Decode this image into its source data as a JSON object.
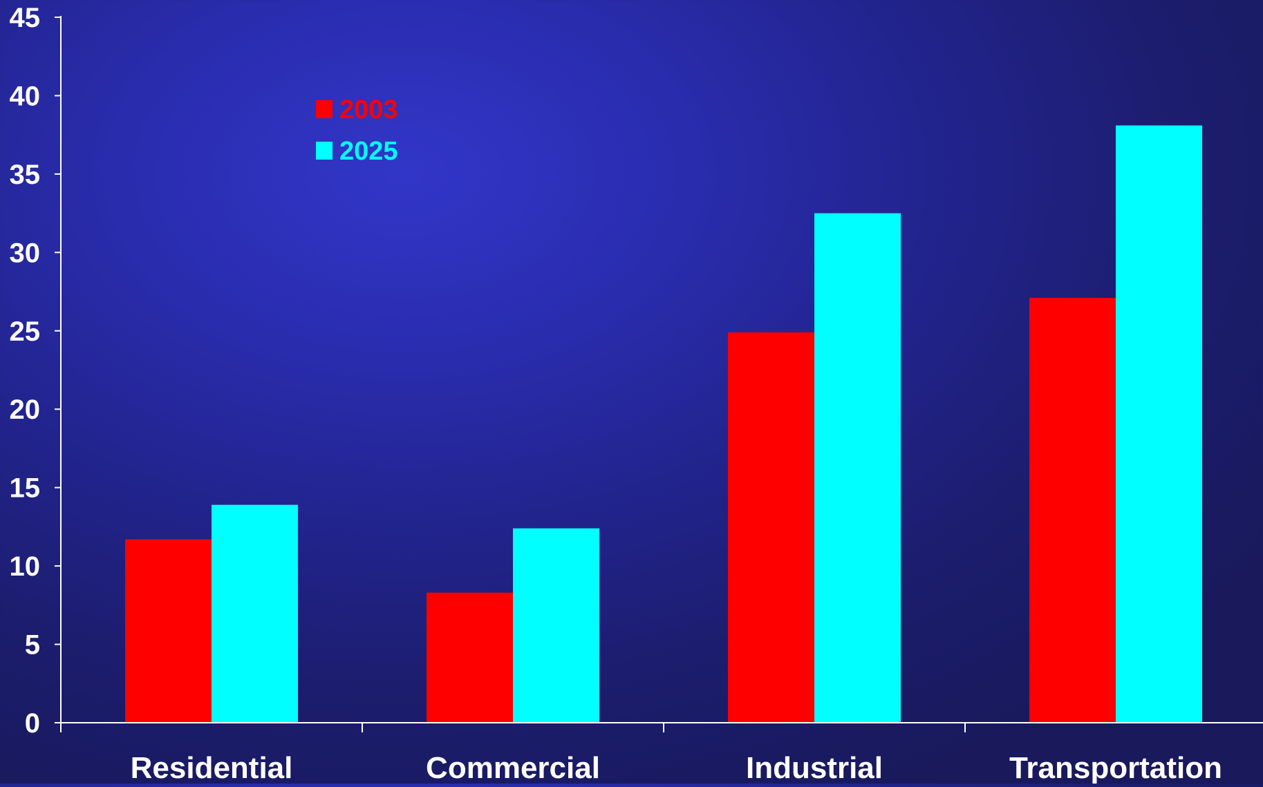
{
  "chart_data": {
    "type": "bar",
    "title": "",
    "xlabel": "",
    "ylabel": "",
    "categories": [
      "Residential",
      "Commercial",
      "Industrial",
      "Transportation"
    ],
    "series": [
      {
        "name": "2003",
        "color": "#ff0000",
        "values": [
          11.7,
          8.3,
          24.9,
          27.1
        ]
      },
      {
        "name": "2025",
        "color": "#00ffff",
        "values": [
          13.9,
          12.4,
          32.5,
          38.1
        ]
      }
    ],
    "ylim": [
      0,
      45
    ],
    "yticks": [
      "0",
      "5",
      "10",
      "15",
      "20",
      "25",
      "30",
      "35",
      "40",
      "45"
    ],
    "grid": false,
    "legend_position": "top-left",
    "colors": {
      "axis": "#ffffff",
      "text": "#ffffff"
    }
  }
}
